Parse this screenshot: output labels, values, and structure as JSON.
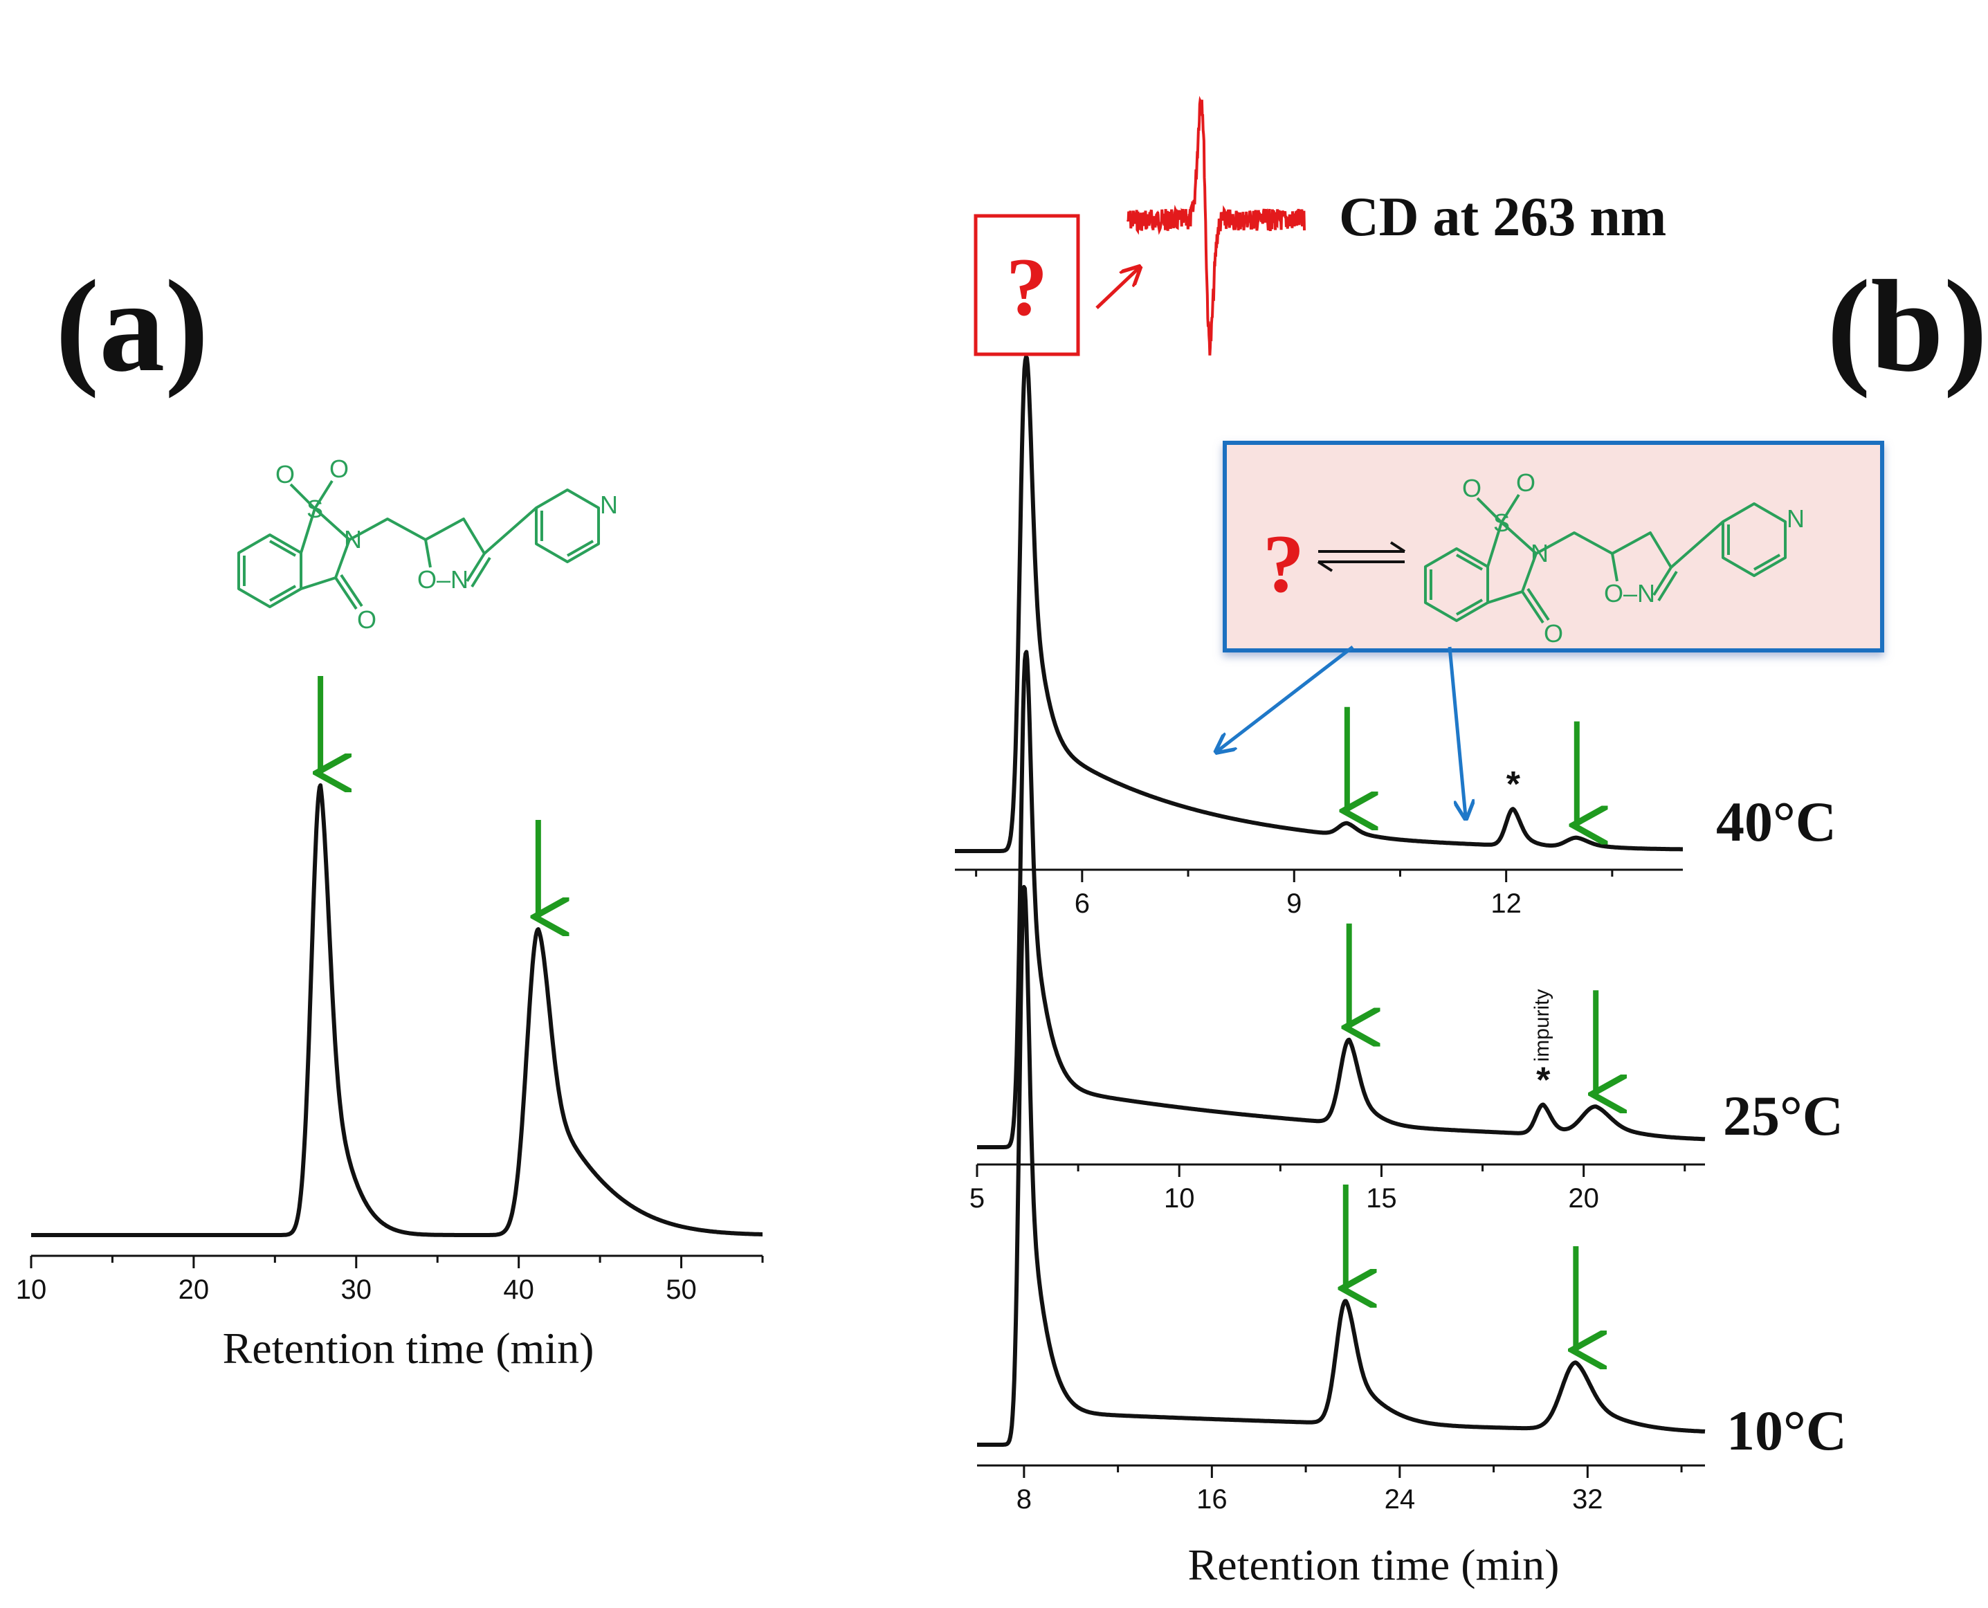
{
  "labels": {
    "panel_a": "(a)",
    "panel_b": "(b)",
    "cd_label": "CD at 263 nm",
    "question": "?",
    "impurity": "impurity",
    "asterisk": "*",
    "x_title_a": "Retention time (min)",
    "x_title_b": "Retention time (min)"
  },
  "molecule_atoms": {
    "O": "O",
    "S": "S",
    "N": "N",
    "O_N": "O–N"
  },
  "colors": {
    "trace": "#111111",
    "arrow": "#1f9a1f",
    "molecule": "#2aa05a",
    "cd": "#e31a1c",
    "box_fill": "#f9e2e0",
    "box_border": "#1f6fc0",
    "question": "#e31a1c"
  },
  "chart_data": [
    {
      "id": "a",
      "type": "line",
      "title": "(a)",
      "xlabel": "Retention time (min)",
      "ylabel": "",
      "xlim": [
        10,
        55
      ],
      "xticks": [
        10,
        20,
        30,
        40,
        50
      ],
      "peaks": [
        {
          "t": 27.8,
          "height": 1.0,
          "sigma_l": 0.55,
          "tau": 0.9
        },
        {
          "t": 41.2,
          "height": 0.68,
          "sigma_l": 0.7,
          "tau": 2.1
        }
      ],
      "baseline": 0.0,
      "arrow_peaks": [
        27.8,
        41.2
      ]
    },
    {
      "id": "b-40",
      "type": "line",
      "label": "40°C",
      "xlim": [
        4.2,
        14.5
      ],
      "xticks": [
        6,
        9,
        12
      ],
      "peaks": [
        {
          "t": 5.2,
          "height": 1.0,
          "sigma_l": 0.08,
          "tau": 0.12
        },
        {
          "t": 9.75,
          "height": 0.025,
          "sigma_l": 0.12,
          "tau": 0.18
        },
        {
          "t": 12.1,
          "height": 0.075,
          "sigma_l": 0.1,
          "tau": 0.12
        },
        {
          "t": 13.0,
          "height": 0.02,
          "sigma_l": 0.15,
          "tau": 0.2
        }
      ],
      "plateau": {
        "start": 5.2,
        "end": 14.5,
        "level": 0.25,
        "decay": 2.2
      },
      "arrow_peaks": [
        9.75,
        13.0
      ],
      "impurity_peak": 12.1,
      "blue_targets": [
        7.5,
        11.0
      ]
    },
    {
      "id": "b-25",
      "type": "line",
      "label": "25°C",
      "xlim": [
        5,
        23
      ],
      "xticks": [
        5,
        10,
        15,
        20
      ],
      "peaks": [
        {
          "t": 6.2,
          "height": 1.0,
          "sigma_l": 0.12,
          "tau": 0.25
        },
        {
          "t": 14.2,
          "height": 0.17,
          "sigma_l": 0.22,
          "tau": 0.3
        },
        {
          "t": 19.0,
          "height": 0.06,
          "sigma_l": 0.18,
          "tau": 0.2
        },
        {
          "t": 20.3,
          "height": 0.06,
          "sigma_l": 0.35,
          "tau": 0.5
        }
      ],
      "plateau": {
        "start": 6.2,
        "end": 23,
        "level": 0.13,
        "decay": 8.0
      },
      "arrow_peaks": [
        14.2,
        20.3
      ],
      "impurity_peak": 19.0
    },
    {
      "id": "b-10",
      "type": "line",
      "label": "10°C",
      "xlabel": "Retention time (min)",
      "xlim": [
        6,
        37
      ],
      "xticks": [
        8,
        16,
        24,
        32
      ],
      "peaks": [
        {
          "t": 8.0,
          "height": 1.0,
          "sigma_l": 0.2,
          "tau": 0.45
        },
        {
          "t": 21.7,
          "height": 0.22,
          "sigma_l": 0.4,
          "tau": 0.8
        },
        {
          "t": 31.5,
          "height": 0.12,
          "sigma_l": 0.6,
          "tau": 1.0
        }
      ],
      "plateau": {
        "start": 8.0,
        "end": 37,
        "level": 0.06,
        "decay": 30.0
      },
      "arrow_peaks": [
        21.7,
        31.5
      ]
    }
  ]
}
